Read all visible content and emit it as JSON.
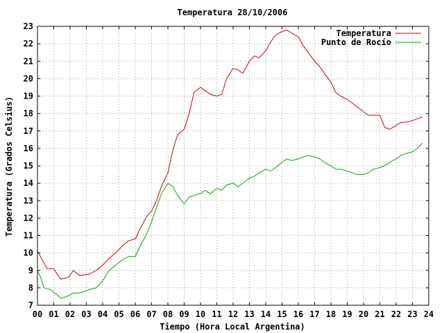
{
  "chart_data": {
    "type": "line",
    "title": "Temperatura 28/10/2006",
    "xlabel": "Tiempo (Hora Local Argentina)",
    "ylabel": "Temperatura (Grados Celsius)",
    "xlim": [
      0,
      24
    ],
    "ylim": [
      7,
      23
    ],
    "x_ticks": [
      "00",
      "01",
      "02",
      "03",
      "04",
      "05",
      "06",
      "07",
      "08",
      "09",
      "10",
      "11",
      "12",
      "13",
      "14",
      "15",
      "16",
      "17",
      "18",
      "19",
      "20",
      "21",
      "22",
      "23",
      "24"
    ],
    "y_ticks": [
      "7",
      "8",
      "9",
      "10",
      "11",
      "12",
      "13",
      "14",
      "15",
      "16",
      "17",
      "18",
      "19",
      "20",
      "21",
      "22",
      "23"
    ],
    "grid": true,
    "legend_position": "top-right",
    "series": [
      {
        "name": "Temperatura",
        "color": "#cc0000",
        "x": [
          0,
          0.3,
          0.6,
          1.0,
          1.2,
          1.45,
          1.9,
          2.2,
          2.6,
          3.2,
          3.6,
          4.0,
          4.4,
          4.8,
          5.2,
          5.6,
          6.0,
          6.3,
          6.7,
          7.0,
          7.3,
          7.6,
          8.0,
          8.3,
          8.6,
          9.0,
          9.3,
          9.6,
          10.0,
          10.3,
          10.6,
          11.0,
          11.3,
          11.6,
          12.0,
          12.3,
          12.6,
          13.0,
          13.3,
          13.6,
          14.0,
          14.3,
          14.6,
          15.0,
          15.3,
          15.6,
          16.0,
          16.3,
          16.6,
          17.0,
          17.3,
          17.6,
          18.0,
          18.3,
          18.6,
          19.0,
          19.3,
          19.6,
          20.0,
          20.3,
          20.6,
          21.0,
          21.3,
          21.6,
          22.0,
          22.3,
          22.6,
          23.0,
          23.3,
          23.6
        ],
        "y": [
          10.1,
          9.6,
          9.1,
          9.1,
          8.8,
          8.5,
          8.6,
          9.0,
          8.7,
          8.8,
          9.0,
          9.3,
          9.7,
          10.0,
          10.4,
          10.7,
          10.8,
          11.4,
          12.1,
          12.4,
          13.0,
          13.8,
          14.6,
          15.9,
          16.8,
          17.1,
          18.0,
          19.2,
          19.5,
          19.3,
          19.1,
          19.0,
          19.1,
          20.0,
          20.6,
          20.5,
          20.3,
          21.0,
          21.3,
          21.2,
          21.6,
          22.1,
          22.5,
          22.7,
          22.8,
          22.6,
          22.4,
          21.9,
          21.5,
          21.0,
          20.7,
          20.3,
          19.8,
          19.2,
          19.0,
          18.8,
          18.6,
          18.4,
          18.1,
          17.9,
          17.9,
          17.9,
          17.2,
          17.1,
          17.3,
          17.5,
          17.5,
          17.6,
          17.7,
          17.8
        ]
      },
      {
        "name": "Punto de Rocío",
        "color": "#00aa00",
        "x": [
          0,
          0.2,
          0.4,
          0.8,
          1.2,
          1.45,
          1.8,
          2.2,
          2.6,
          3.2,
          3.6,
          4.0,
          4.4,
          4.8,
          5.2,
          5.6,
          6.0,
          6.3,
          6.7,
          7.0,
          7.3,
          7.6,
          8.0,
          8.3,
          8.6,
          9.0,
          9.3,
          9.6,
          10.0,
          10.3,
          10.6,
          11.0,
          11.3,
          11.6,
          12.0,
          12.3,
          12.6,
          13.0,
          13.3,
          13.6,
          14.0,
          14.3,
          14.6,
          15.0,
          15.3,
          15.6,
          16.0,
          16.3,
          16.6,
          17.0,
          17.3,
          17.6,
          18.0,
          18.3,
          18.6,
          19.0,
          19.3,
          19.6,
          20.0,
          20.3,
          20.6,
          21.0,
          21.3,
          21.6,
          22.0,
          22.3,
          22.6,
          23.0,
          23.3,
          23.6
        ],
        "y": [
          9.0,
          8.6,
          8.0,
          7.9,
          7.6,
          7.4,
          7.5,
          7.7,
          7.7,
          7.9,
          8.0,
          8.4,
          9.0,
          9.3,
          9.6,
          9.8,
          9.8,
          10.4,
          11.1,
          11.8,
          12.6,
          13.4,
          14.0,
          13.8,
          13.3,
          12.8,
          13.2,
          13.3,
          13.4,
          13.6,
          13.4,
          13.7,
          13.6,
          13.9,
          14.0,
          13.8,
          14.0,
          14.3,
          14.4,
          14.6,
          14.8,
          14.7,
          14.9,
          15.2,
          15.4,
          15.3,
          15.4,
          15.5,
          15.6,
          15.5,
          15.4,
          15.2,
          15.0,
          14.8,
          14.8,
          14.7,
          14.6,
          14.5,
          14.5,
          14.6,
          14.8,
          14.9,
          15.0,
          15.2,
          15.4,
          15.6,
          15.7,
          15.8,
          16.0,
          16.3
        ]
      }
    ]
  }
}
